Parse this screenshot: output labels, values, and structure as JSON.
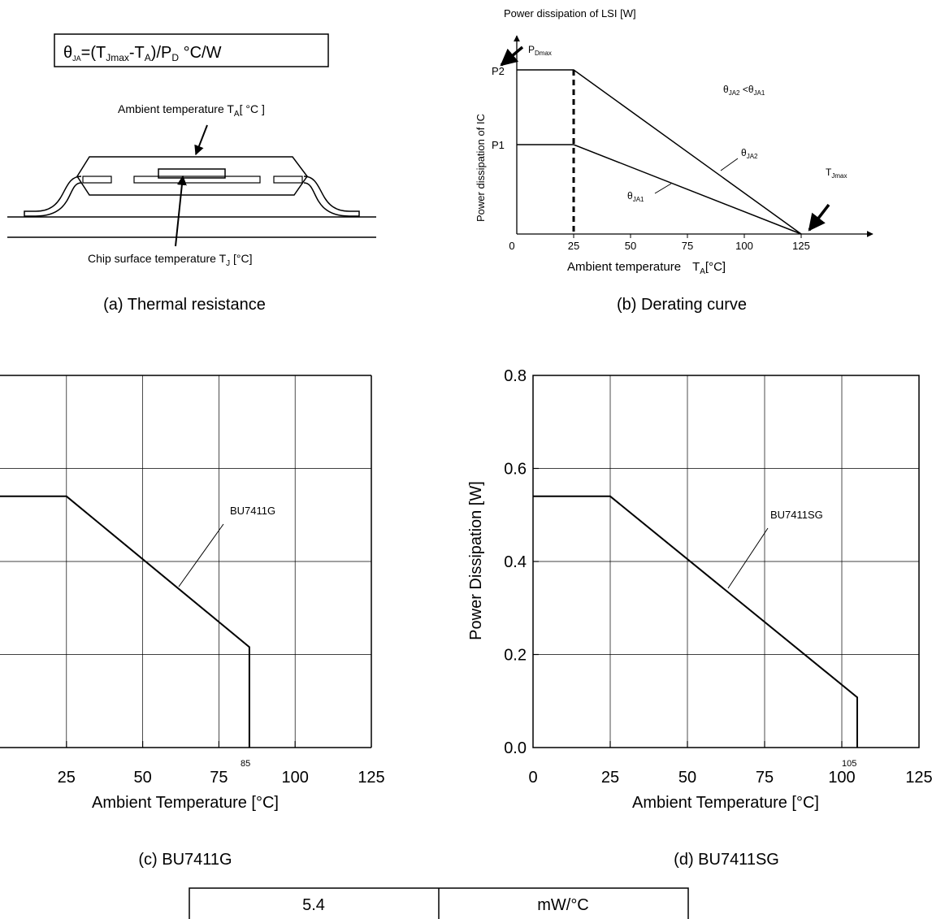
{
  "panel_a": {
    "formula": {
      "theta": "θ",
      "ja": "JA",
      "eq": "=(T",
      "jmax": "Jmax",
      "minus": "-T",
      "a": "A",
      "div": ")/P",
      "d": "D",
      "unit": " °C/W"
    },
    "ambient_label": {
      "text": "Ambient temperature T",
      "sub": "A",
      "unit": "[ °C ]"
    },
    "chip_label": {
      "text": "Chip surface temperature T",
      "sub": "J",
      "unit": " [°C]"
    },
    "caption": "(a) Thermal resistance"
  },
  "panel_b": {
    "y_title": "Power dissipation of LSI [W]",
    "y_label": "Power dissipation of IC",
    "x_label": {
      "text": "Ambient temperature",
      "t": "T",
      "sub": "A",
      "unit": "[°C]"
    },
    "pdmax": {
      "p": "P",
      "sub": "Dmax"
    },
    "tjmax": {
      "t": "T",
      "sub": "Jmax"
    },
    "p2": "P2",
    "p1": "P1",
    "relation": {
      "t1": "θ",
      "s1": "JA2",
      "mid": " <θ",
      "s2": "JA1"
    },
    "theta2": {
      "t": "θ",
      "sub": "JA2"
    },
    "theta1": {
      "t": "θ",
      "sub": "JA1"
    },
    "caption": "(b) Derating curve",
    "chart_data": {
      "type": "line",
      "x_ticks": [
        "0",
        "25",
        "50",
        "75",
        "100",
        "125"
      ],
      "series": [
        {
          "name": "θJA2",
          "x": [
            0,
            25,
            125
          ],
          "y": [
            "P2",
            "P2",
            0
          ]
        },
        {
          "name": "θJA1",
          "x": [
            0,
            25,
            125
          ],
          "y": [
            "P1",
            "P1",
            0
          ]
        }
      ]
    }
  },
  "panel_c": {
    "xlabel": "Ambient Temperature [°C]",
    "caption": "(c) BU7411G",
    "chart_data": {
      "type": "line",
      "xlim": [
        0,
        125
      ],
      "ylim": [
        0,
        0.8
      ],
      "x_ticks": [
        25,
        50,
        75,
        100,
        125
      ],
      "annotation": "85",
      "series": [
        {
          "name": "BU7411G",
          "x": [
            0,
            25,
            85,
            85
          ],
          "y": [
            0.54,
            0.54,
            0.216,
            0
          ]
        }
      ]
    }
  },
  "panel_d": {
    "xlabel": "Ambient Temperature [°C]",
    "ylabel": "Power Dissipation [W]",
    "caption": "(d) BU7411SG",
    "chart_data": {
      "type": "line",
      "xlim": [
        0,
        125
      ],
      "ylim": [
        0,
        0.8
      ],
      "x_ticks": [
        0,
        25,
        50,
        75,
        100,
        125
      ],
      "y_ticks": [
        "0.0",
        "0.2",
        "0.4",
        "0.6",
        "0.8"
      ],
      "annotation": "105",
      "series": [
        {
          "name": "BU7411SG",
          "x": [
            0,
            25,
            105,
            105
          ],
          "y": [
            0.54,
            0.54,
            0.108,
            0
          ]
        }
      ]
    }
  },
  "table": {
    "value": "5.4",
    "unit": "mW/°C"
  }
}
